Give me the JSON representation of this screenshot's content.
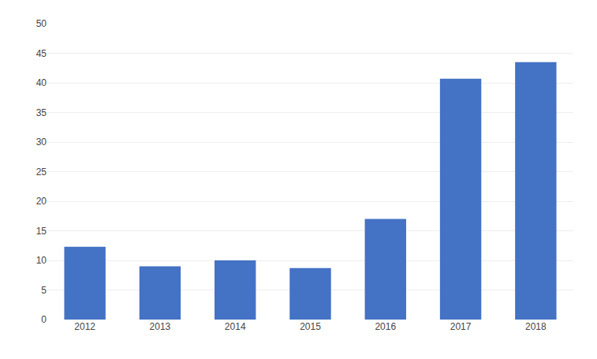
{
  "chart_data": {
    "type": "bar",
    "categories": [
      "2012",
      "2013",
      "2014",
      "2015",
      "2016",
      "2017",
      "2018"
    ],
    "values": [
      12.3,
      9.0,
      10.0,
      8.7,
      17.0,
      40.7,
      43.5
    ],
    "color": "#4472C4",
    "ylim": [
      0,
      50
    ],
    "yticks": [
      0,
      5,
      10,
      15,
      20,
      25,
      30,
      35,
      40,
      45,
      50
    ],
    "grid": true
  }
}
